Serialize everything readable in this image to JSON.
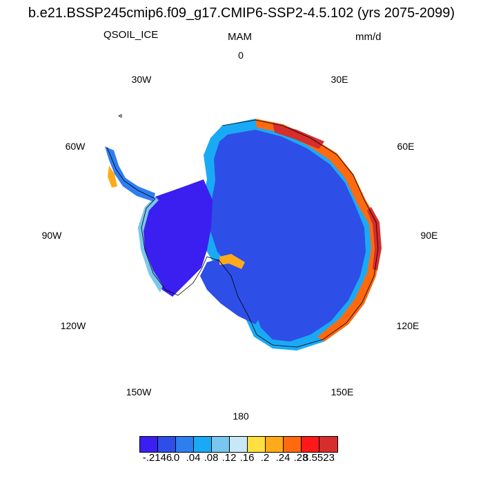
{
  "title": "b.e21.BSSP245cmip6.f09_g17.CMIP6-SSP2-4.5.102 (yrs 2075-2099)",
  "variable": "QSOIL_ICE",
  "season": "MAM",
  "units": "mm/d",
  "longitude_labels": {
    "lon_0": "0",
    "lon_30e": "30E",
    "lon_60e": "60E",
    "lon_90e": "90E",
    "lon_120e": "120E",
    "lon_150e": "150E",
    "lon_180": "180",
    "lon_150w": "150W",
    "lon_120w": "120W",
    "lon_90w": "90W",
    "lon_60w": "60W",
    "lon_30w": "30W"
  },
  "colorbar": {
    "colors": [
      "#3a1ff0",
      "#2e4ee8",
      "#2f7ef0",
      "#1aaaf5",
      "#79c7ef",
      "#c9e8f7",
      "#ffe040",
      "#ffaa1a",
      "#ff6a10",
      "#ff1a1a",
      "#d62d2d"
    ],
    "labels": [
      "-.2146",
      ".0",
      ".04",
      ".08",
      ".12",
      ".16",
      ".2",
      ".24",
      ".28",
      "3.5523"
    ]
  }
}
